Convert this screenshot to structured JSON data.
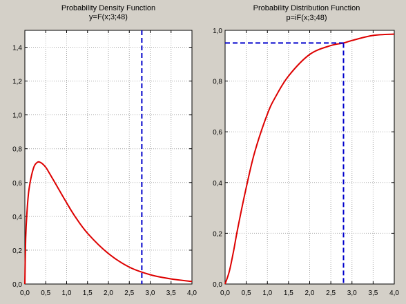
{
  "chart_data": [
    {
      "type": "line",
      "title": "Probability Density Function",
      "subtitle": "y=F(x;3;48)",
      "xlim": [
        0,
        4
      ],
      "ylim": [
        0,
        1.5
      ],
      "xticks": [
        0,
        0.5,
        1,
        1.5,
        2,
        2.5,
        3,
        3.5,
        4
      ],
      "yticks": [
        0,
        0.2,
        0.4,
        0.6,
        0.8,
        1.0,
        1.2,
        1.4
      ],
      "xtick_labels": [
        "0,0",
        "0,5",
        "1,0",
        "1,5",
        "2,0",
        "2,5",
        "3,0",
        "3,5",
        "4,0"
      ],
      "ytick_labels": [
        "0,0",
        "0,2",
        "0,4",
        "0,6",
        "0,8",
        "1,0",
        "1,2",
        "1,4"
      ],
      "grid": true,
      "series": [
        {
          "color": "#dd0000",
          "x": [
            0,
            0.02,
            0.05,
            0.1,
            0.2,
            0.3,
            0.4,
            0.5,
            0.6,
            0.8,
            1.0,
            1.2,
            1.5,
            2.0,
            2.5,
            3.0,
            3.5,
            4.0
          ],
          "y": [
            0,
            0.27,
            0.42,
            0.56,
            0.68,
            0.72,
            0.715,
            0.69,
            0.65,
            0.565,
            0.48,
            0.4,
            0.3,
            0.18,
            0.1,
            0.055,
            0.03,
            0.015
          ]
        }
      ],
      "reference_line": {
        "x": 2.8,
        "color": "#0000cc"
      }
    },
    {
      "type": "line",
      "title": "Probability Distribution Function",
      "subtitle": "p=iF(x;3;48)",
      "xlim": [
        0,
        4
      ],
      "ylim": [
        0,
        1.0
      ],
      "xticks": [
        0,
        0.5,
        1,
        1.5,
        2,
        2.5,
        3,
        3.5,
        4
      ],
      "yticks": [
        0,
        0.2,
        0.4,
        0.6,
        0.8,
        1.0
      ],
      "xtick_labels": [
        "0,0",
        "0,5",
        "1,0",
        "1,5",
        "2,0",
        "2,5",
        "3,0",
        "3,5",
        "4,0"
      ],
      "ytick_labels": [
        "0,0",
        "0,2",
        "0,4",
        "0,6",
        "0,8",
        "1,0"
      ],
      "grid": true,
      "series": [
        {
          "color": "#dd0000",
          "x": [
            0,
            0.1,
            0.2,
            0.3,
            0.5,
            0.7,
            1.0,
            1.2,
            1.5,
            2.0,
            2.5,
            2.8,
            3.0,
            3.5,
            4.0
          ],
          "y": [
            0,
            0.05,
            0.13,
            0.22,
            0.38,
            0.52,
            0.67,
            0.74,
            0.82,
            0.905,
            0.94,
            0.95,
            0.96,
            0.98,
            0.985
          ]
        }
      ],
      "reference_line": {
        "x": 2.8,
        "y": 0.95,
        "color": "#0000cc"
      }
    }
  ]
}
